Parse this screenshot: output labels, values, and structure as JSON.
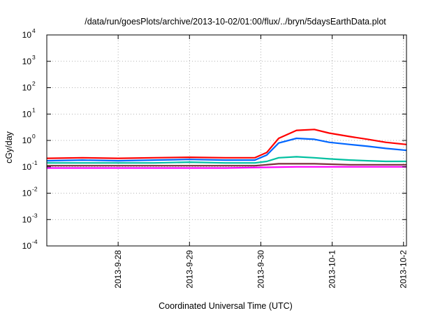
{
  "chart_data": {
    "type": "line",
    "title": "/data/run/goesPlots/archive/2013-10-02/01:00/flux/../bryn/5daysEarthData.plot",
    "xlabel": "Coordinated Universal Time (UTC)",
    "ylabel": "cGy/day",
    "yscale": "log",
    "ylim": [
      0.0001,
      10000
    ],
    "xlim": [
      "2013-09-27T00:00",
      "2013-10-02T01:00"
    ],
    "grid": true,
    "y_ticks": [
      {
        "mant": "10",
        "exp": "-4",
        "value": 0.0001
      },
      {
        "mant": "10",
        "exp": "-3",
        "value": 0.001
      },
      {
        "mant": "10",
        "exp": "-2",
        "value": 0.01
      },
      {
        "mant": "10",
        "exp": "-1",
        "value": 0.1
      },
      {
        "mant": "10",
        "exp": "0",
        "value": 1
      },
      {
        "mant": "10",
        "exp": "1",
        "value": 10
      },
      {
        "mant": "10",
        "exp": "2",
        "value": 100
      },
      {
        "mant": "10",
        "exp": "3",
        "value": 1000
      },
      {
        "mant": "10",
        "exp": "4",
        "value": 10000
      }
    ],
    "x_ticks": [
      {
        "label": "2013-9-28",
        "value": "2013-09-28T00:00"
      },
      {
        "label": "2013-9-29",
        "value": "2013-09-29T00:00"
      },
      {
        "label": "2013-9-30",
        "value": "2013-09-30T00:00"
      },
      {
        "label": "2013-10-1",
        "value": "2013-10-01T00:00"
      },
      {
        "label": "2013-10-2",
        "value": "2013-10-02T00:00"
      }
    ],
    "series": [
      {
        "color": "#ff0000",
        "x": [
          "2013-09-27T00:00",
          "2013-09-27T12:00",
          "2013-09-28T00:00",
          "2013-09-28T12:00",
          "2013-09-29T00:00",
          "2013-09-29T12:00",
          "2013-09-29T22:00",
          "2013-09-30T02:00",
          "2013-09-30T06:00",
          "2013-09-30T12:00",
          "2013-09-30T18:00",
          "2013-09-30T23:00",
          "2013-10-01T06:00",
          "2013-10-01T12:00",
          "2013-10-01T18:00",
          "2013-10-02T01:00"
        ],
        "y": [
          0.21,
          0.22,
          0.21,
          0.22,
          0.23,
          0.22,
          0.22,
          0.35,
          1.2,
          2.4,
          2.6,
          1.9,
          1.4,
          1.1,
          0.85,
          0.7
        ]
      },
      {
        "color": "#0066ff",
        "x": [
          "2013-09-27T00:00",
          "2013-09-27T12:00",
          "2013-09-28T00:00",
          "2013-09-28T12:00",
          "2013-09-29T00:00",
          "2013-09-29T12:00",
          "2013-09-29T22:00",
          "2013-09-30T02:00",
          "2013-09-30T06:00",
          "2013-09-30T12:00",
          "2013-09-30T18:00",
          "2013-09-30T23:00",
          "2013-10-01T06:00",
          "2013-10-01T12:00",
          "2013-10-01T18:00",
          "2013-10-02T01:00"
        ],
        "y": [
          0.17,
          0.18,
          0.17,
          0.18,
          0.19,
          0.18,
          0.18,
          0.28,
          0.8,
          1.2,
          1.1,
          0.85,
          0.7,
          0.6,
          0.5,
          0.42
        ]
      },
      {
        "color": "#00c0a0",
        "x": [
          "2013-09-27T00:00",
          "2013-09-27T12:00",
          "2013-09-28T00:00",
          "2013-09-28T12:00",
          "2013-09-29T00:00",
          "2013-09-29T12:00",
          "2013-09-29T22:00",
          "2013-09-30T02:00",
          "2013-09-30T06:00",
          "2013-09-30T12:00",
          "2013-09-30T18:00",
          "2013-09-30T23:00",
          "2013-10-01T06:00",
          "2013-10-01T12:00",
          "2013-10-01T18:00",
          "2013-10-02T01:00"
        ],
        "y": [
          0.14,
          0.14,
          0.14,
          0.14,
          0.15,
          0.14,
          0.14,
          0.16,
          0.22,
          0.24,
          0.22,
          0.2,
          0.18,
          0.17,
          0.16,
          0.16
        ]
      },
      {
        "color": "#7a2f3a",
        "x": [
          "2013-09-27T00:00",
          "2013-09-28T00:00",
          "2013-09-29T00:00",
          "2013-09-29T22:00",
          "2013-09-30T06:00",
          "2013-09-30T18:00",
          "2013-10-01T06:00",
          "2013-10-02T01:00"
        ],
        "y": [
          0.11,
          0.11,
          0.11,
          0.11,
          0.13,
          0.13,
          0.12,
          0.12
        ]
      },
      {
        "color": "#ff00ff",
        "x": [
          "2013-09-27T00:00",
          "2013-09-27T12:00",
          "2013-09-28T00:00",
          "2013-09-28T12:00",
          "2013-09-29T00:00",
          "2013-09-29T12:00",
          "2013-09-30T00:00",
          "2013-09-30T12:00",
          "2013-10-01T00:00",
          "2013-10-01T12:00",
          "2013-10-02T01:00"
        ],
        "y": [
          0.09,
          0.09,
          0.09,
          0.09,
          0.09,
          0.09,
          0.095,
          0.1,
          0.1,
          0.1,
          0.1
        ]
      }
    ]
  }
}
